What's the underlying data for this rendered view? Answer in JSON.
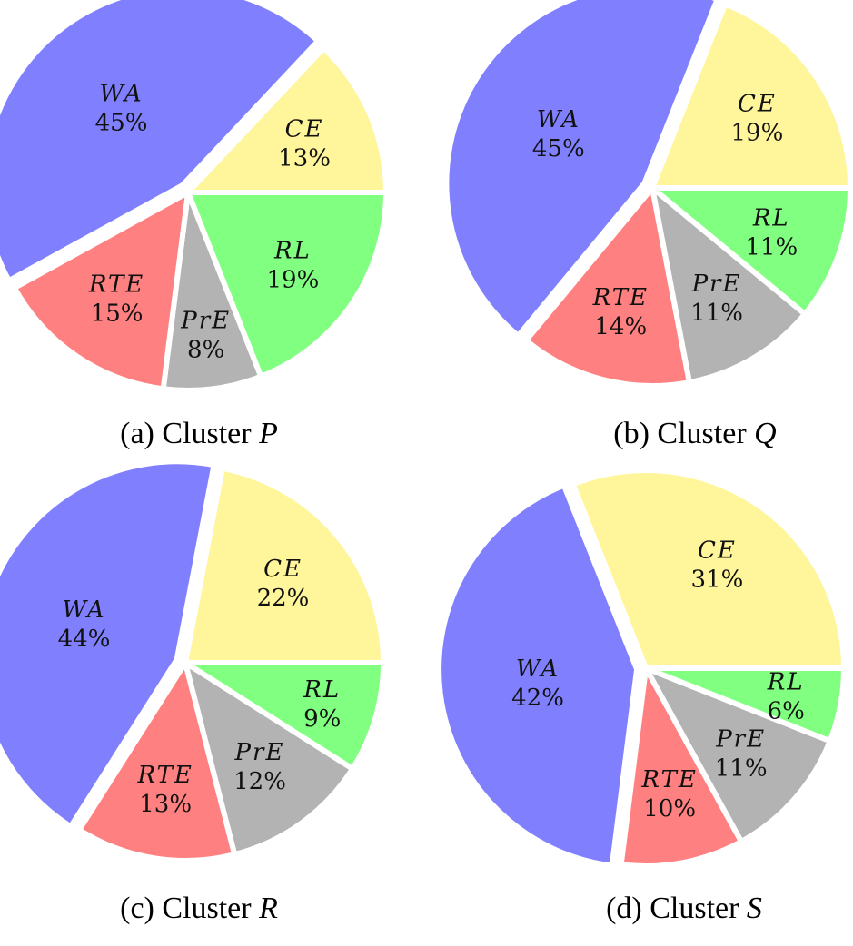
{
  "colors": {
    "WA": "#8080ff",
    "CE": "#fff59a",
    "RL": "#80ff80",
    "PrE": "#b3b3b3",
    "RTE": "#ff8080"
  },
  "chart_data": [
    {
      "type": "pie",
      "caption_prefix": "(a) Cluster",
      "caption_var": "P",
      "slices": [
        {
          "name": "CE",
          "label": "CE",
          "pct_text": "13%",
          "value": 13
        },
        {
          "name": "RL",
          "label": "RL",
          "pct_text": "19%",
          "value": 19
        },
        {
          "name": "PrE",
          "label": "PrE",
          "pct_text": "8%",
          "value": 8
        },
        {
          "name": "RTE",
          "label": "RTE",
          "pct_text": "15%",
          "value": 15
        },
        {
          "name": "WA",
          "label": "WA",
          "pct_text": "45%",
          "value": 45
        }
      ]
    },
    {
      "type": "pie",
      "caption_prefix": "(b) Cluster",
      "caption_var": "Q",
      "slices": [
        {
          "name": "CE",
          "label": "CE",
          "pct_text": "19%",
          "value": 19
        },
        {
          "name": "RL",
          "label": "RL",
          "pct_text": "11%",
          "value": 11
        },
        {
          "name": "PrE",
          "label": "PrE",
          "pct_text": "11%",
          "value": 11
        },
        {
          "name": "RTE",
          "label": "RTE",
          "pct_text": "14%",
          "value": 14
        },
        {
          "name": "WA",
          "label": "WA",
          "pct_text": "45%",
          "value": 45
        }
      ]
    },
    {
      "type": "pie",
      "caption_prefix": "(c) Cluster",
      "caption_var": "R",
      "slices": [
        {
          "name": "CE",
          "label": "CE",
          "pct_text": "22%",
          "value": 22
        },
        {
          "name": "RL",
          "label": "RL",
          "pct_text": "9%",
          "value": 9
        },
        {
          "name": "PrE",
          "label": "PrE",
          "pct_text": "12%",
          "value": 12
        },
        {
          "name": "RTE",
          "label": "RTE",
          "pct_text": "13%",
          "value": 13
        },
        {
          "name": "WA",
          "label": "WA",
          "pct_text": "44%",
          "value": 44
        }
      ]
    },
    {
      "type": "pie",
      "caption_prefix": "(d) Cluster",
      "caption_var": "S",
      "slices": [
        {
          "name": "CE",
          "label": "CE",
          "pct_text": "31%",
          "value": 31
        },
        {
          "name": "RL",
          "label": "RL",
          "pct_text": "6%",
          "value": 6
        },
        {
          "name": "PrE",
          "label": "PrE",
          "pct_text": "11%",
          "value": 11
        },
        {
          "name": "RTE",
          "label": "RTE",
          "pct_text": "10%",
          "value": 10
        },
        {
          "name": "WA",
          "label": "WA",
          "pct_text": "42%",
          "value": 42
        }
      ]
    }
  ]
}
